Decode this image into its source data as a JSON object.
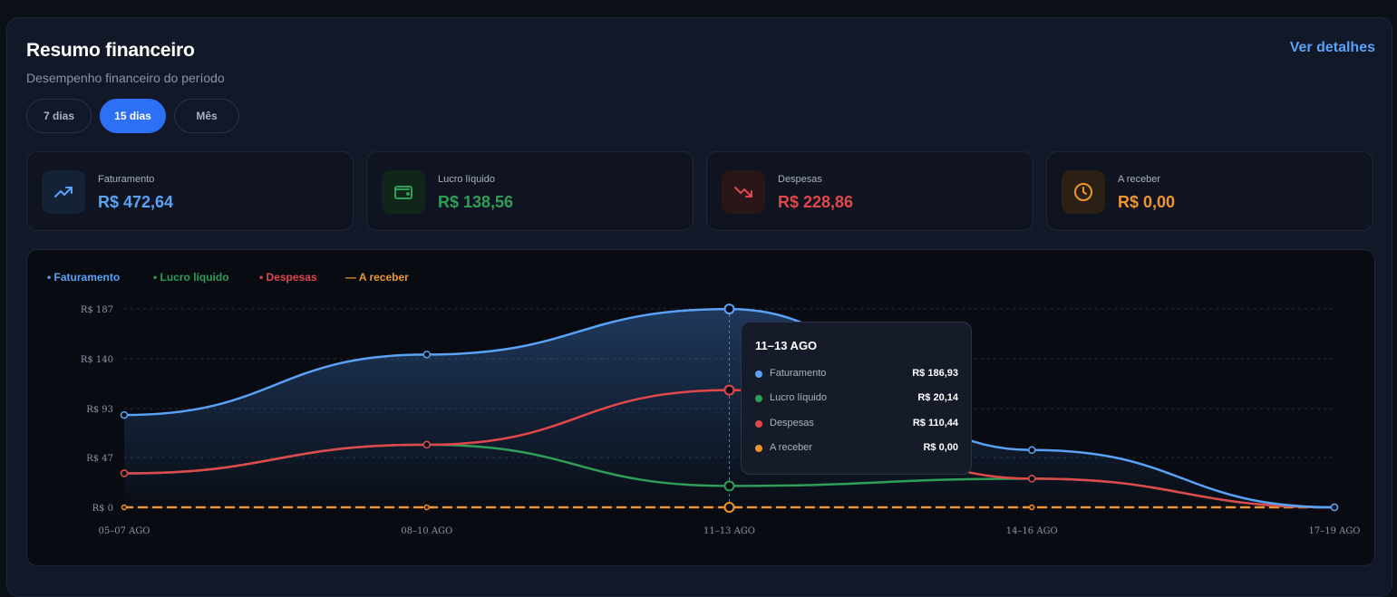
{
  "header": {
    "title": "Resumo financeiro",
    "subtitle": "Desempenho financeiro do período",
    "details_link": "Ver detalhes"
  },
  "tabs": [
    {
      "label": "7 dias",
      "active": false
    },
    {
      "label": "15 dias",
      "active": true
    },
    {
      "label": "Mês",
      "active": false
    }
  ],
  "stats": [
    {
      "label": "Faturamento",
      "value": "R$ 472,64",
      "color": "#5aa2f7",
      "icon": "trending-up-icon"
    },
    {
      "label": "Lucro líquido",
      "value": "R$ 138,56",
      "color": "#2f9e57",
      "icon": "wallet-icon"
    },
    {
      "label": "Despesas",
      "value": "R$ 228,86",
      "color": "#e2484b",
      "icon": "trending-down-icon"
    },
    {
      "label": "A receber",
      "value": "R$ 0,00",
      "color": "#f0952c",
      "icon": "clock-icon"
    }
  ],
  "legend": [
    {
      "label": "• Faturamento",
      "color": "#5aa2f7"
    },
    {
      "label": "• Lucro líquido",
      "color": "#2f9e57"
    },
    {
      "label": "• Despesas",
      "color": "#e2484b"
    },
    {
      "label": "— A receber",
      "color": "#f0952c"
    }
  ],
  "tooltip": {
    "title": "11–13 AGO",
    "rows": [
      {
        "name": "Faturamento",
        "value": "R$ 186,93",
        "color": "#5aa2f7"
      },
      {
        "name": "Lucro líquido",
        "value": "R$ 20,14",
        "color": "#2f9e57"
      },
      {
        "name": "Despesas",
        "value": "R$ 110,44",
        "color": "#e2484b"
      },
      {
        "name": "A receber",
        "value": "R$ 0,00",
        "color": "#f0952c"
      }
    ]
  },
  "chart_data": {
    "type": "line",
    "categories": [
      "05–07 AGO",
      "08–10 AGO",
      "11–13 AGO",
      "14–16 AGO",
      "17–19 AGO"
    ],
    "y_ticks": [
      0,
      47,
      93,
      140,
      187
    ],
    "y_tick_labels": [
      "R$ 0",
      "R$ 47",
      "R$ 93",
      "R$ 140",
      "R$ 187"
    ],
    "ylim": [
      0,
      187
    ],
    "grid": true,
    "legend_position": "top-left",
    "highlighted_category": "11–13 AGO",
    "series": [
      {
        "name": "Faturamento",
        "color": "#5aa2f7",
        "values": [
          87,
          144,
          186.93,
          54,
          0
        ],
        "area": true,
        "dashed": false
      },
      {
        "name": "Lucro líquido",
        "color": "#2f9e57",
        "values": [
          32,
          59,
          20.14,
          27,
          0
        ],
        "area": false,
        "dashed": false
      },
      {
        "name": "Despesas",
        "color": "#e2484b",
        "values": [
          32,
          59,
          110.44,
          27,
          0
        ],
        "area": false,
        "dashed": false
      },
      {
        "name": "A receber",
        "color": "#f0952c",
        "values": [
          0,
          0,
          0,
          0,
          0
        ],
        "area": false,
        "dashed": true
      }
    ]
  }
}
